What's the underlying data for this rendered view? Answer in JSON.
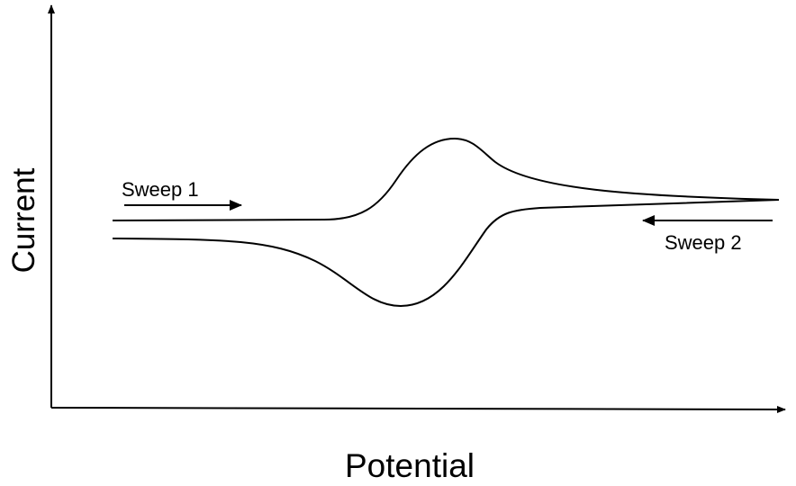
{
  "axes": {
    "y_label": "Current",
    "x_label": "Potential"
  },
  "annotations": {
    "sweep1": "Sweep 1",
    "sweep2": "Sweep 2"
  },
  "colors": {
    "line": "#000000",
    "background": "#ffffff"
  }
}
